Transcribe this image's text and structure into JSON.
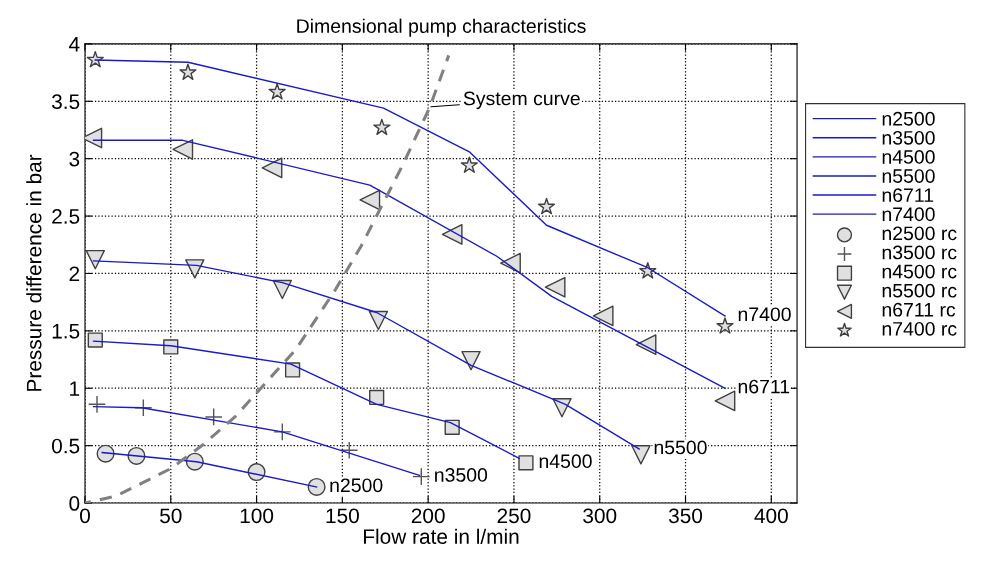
{
  "chart_data": {
    "type": "line",
    "title": "Dimensional pump characteristics",
    "xlabel": "Flow rate in l/min",
    "ylabel": "Pressure difference in bar",
    "xlim": [
      0,
      415
    ],
    "ylim": [
      0,
      4
    ],
    "xticks": [
      0,
      50,
      100,
      150,
      200,
      250,
      300,
      350,
      400
    ],
    "yticks": [
      0,
      0.5,
      1,
      1.5,
      2,
      2.5,
      3,
      3.5,
      4
    ],
    "grid": true,
    "legend": "right",
    "line_style": "solid",
    "marker": "none",
    "series": [
      {
        "name": "n2500",
        "color": "#1a1acc",
        "x": [
          10,
          65,
          135
        ],
        "values": [
          0.44,
          0.36,
          0.14
        ]
      },
      {
        "name": "n3500",
        "color": "#1a1acc",
        "x": [
          5,
          33,
          115,
          195
        ],
        "values": [
          0.84,
          0.83,
          0.62,
          0.24
        ]
      },
      {
        "name": "n4500",
        "color": "#1a1acc",
        "x": [
          5,
          50,
          120,
          170,
          213,
          253
        ],
        "values": [
          1.41,
          1.37,
          1.21,
          0.86,
          0.7,
          0.39
        ]
      },
      {
        "name": "n5500",
        "color": "#1a1acc",
        "x": [
          5,
          65,
          115,
          170,
          225,
          280,
          323
        ],
        "values": [
          2.11,
          2.07,
          1.92,
          1.66,
          1.2,
          0.86,
          0.47
        ]
      },
      {
        "name": "n6711",
        "color": "#1a1acc",
        "x": [
          5,
          57,
          166,
          240,
          272,
          373
        ],
        "values": [
          3.16,
          3.16,
          2.77,
          2.15,
          1.8,
          1.0
        ]
      },
      {
        "name": "n7400",
        "color": "#1a1acc",
        "x": [
          6,
          60,
          174,
          224,
          269,
          328,
          373
        ],
        "values": [
          3.86,
          3.84,
          3.44,
          3.06,
          2.42,
          2.05,
          1.63
        ]
      },
      {
        "name": "n2500 rc",
        "type": "scatter",
        "marker": "circle",
        "color": "#e0e0e0",
        "x": [
          12,
          30,
          64,
          100,
          135
        ],
        "values": [
          0.43,
          0.41,
          0.36,
          0.27,
          0.14
        ]
      },
      {
        "name": "n3500 rc",
        "type": "scatter",
        "marker": "cross",
        "color": "#555555",
        "x": [
          7,
          34,
          75,
          115,
          154,
          196
        ],
        "values": [
          0.86,
          0.83,
          0.75,
          0.62,
          0.46,
          0.23
        ]
      },
      {
        "name": "n4500 rc",
        "type": "scatter",
        "marker": "square",
        "color": "#e0e0e0",
        "x": [
          6,
          50,
          121,
          170,
          214,
          257
        ],
        "values": [
          1.42,
          1.36,
          1.16,
          0.92,
          0.66,
          0.35
        ]
      },
      {
        "name": "n5500 rc",
        "type": "scatter",
        "marker": "triangle_down",
        "color": "#e0e0e0",
        "x": [
          6,
          64,
          115,
          171,
          225,
          278,
          324
        ],
        "values": [
          2.12,
          2.04,
          1.86,
          1.59,
          1.24,
          0.83,
          0.42
        ]
      },
      {
        "name": "n6711 rc",
        "type": "scatter",
        "marker": "triangle_left",
        "color": "#e0e0e0",
        "x": [
          4,
          57,
          109,
          166,
          214,
          248,
          274,
          302,
          327,
          373
        ],
        "values": [
          3.18,
          3.08,
          2.92,
          2.64,
          2.34,
          2.09,
          1.88,
          1.63,
          1.38,
          0.89
        ]
      },
      {
        "name": "n7400 rc",
        "type": "scatter",
        "marker": "star",
        "color": "#e0e0e0",
        "x": [
          6,
          60,
          112,
          173,
          224,
          269,
          328,
          373
        ],
        "values": [
          3.86,
          3.75,
          3.58,
          3.27,
          2.94,
          2.58,
          2.02,
          1.54
        ]
      },
      {
        "line_style": "dashed",
        "color": "#808080",
        "x": [
          0,
          18,
          50,
          69,
          88,
          123,
          146,
          161,
          185,
          201,
          212
        ],
        "values": [
          0,
          0.06,
          0.3,
          0.51,
          0.76,
          1.34,
          1.86,
          2.24,
          2.94,
          3.45,
          3.9
        ]
      }
    ],
    "annotations": [
      {
        "text": "System curve",
        "x": 200,
        "y": 3.45
      },
      {
        "text": "n2500",
        "x": 135,
        "y": 0.14
      },
      {
        "text": "n3500",
        "x": 196,
        "y": 0.23
      },
      {
        "text": "n4500",
        "x": 257,
        "y": 0.35
      },
      {
        "text": "n5500",
        "x": 324,
        "y": 0.47
      },
      {
        "text": "n6711",
        "x": 373,
        "y": 1.0
      },
      {
        "text": "n7400",
        "x": 373,
        "y": 1.63
      }
    ]
  }
}
